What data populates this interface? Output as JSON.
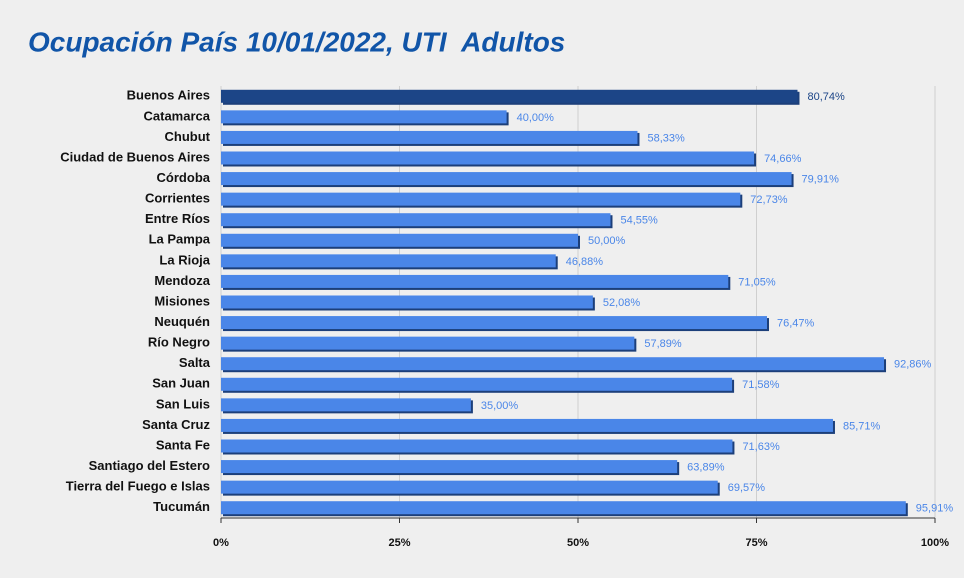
{
  "chart_data": {
    "type": "bar",
    "orientation": "horizontal",
    "title": "Ocupación País 10/01/2022, UTI  Adultos",
    "categories": [
      "Buenos Aires",
      "Catamarca",
      "Chubut",
      "Ciudad de Buenos Aires",
      "Córdoba",
      "Corrientes",
      "Entre Ríos",
      "La Pampa",
      "La Rioja",
      "Mendoza",
      "Misiones",
      "Neuquén",
      "Río Negro",
      "Salta",
      "San Juan",
      "San Luis",
      "Santa Cruz",
      "Santa Fe",
      "Santiago del Estero",
      "Tierra del Fuego e Islas",
      "Tucumán"
    ],
    "values": [
      80.74,
      40.0,
      58.33,
      74.66,
      79.91,
      72.73,
      54.55,
      50.0,
      46.88,
      71.05,
      52.08,
      76.47,
      57.89,
      92.86,
      71.58,
      35.0,
      85.71,
      71.63,
      63.89,
      69.57,
      95.91
    ],
    "value_labels": [
      "80,74%",
      "40,00%",
      "58,33%",
      "74,66%",
      "79,91%",
      "72,73%",
      "54,55%",
      "50,00%",
      "46,88%",
      "71,05%",
      "52,08%",
      "76,47%",
      "57,89%",
      "92,86%",
      "71,58%",
      "35,00%",
      "85,71%",
      "71,63%",
      "63,89%",
      "69,57%",
      "95,91%"
    ],
    "colors": [
      "#1c4587",
      "#4a86e8",
      "#4a86e8",
      "#4a86e8",
      "#4a86e8",
      "#4a86e8",
      "#4a86e8",
      "#4a86e8",
      "#4a86e8",
      "#4a86e8",
      "#4a86e8",
      "#4a86e8",
      "#4a86e8",
      "#4a86e8",
      "#4a86e8",
      "#4a86e8",
      "#4a86e8",
      "#4a86e8",
      "#4a86e8",
      "#4a86e8",
      "#4a86e8"
    ],
    "xlim": [
      0,
      100
    ],
    "xticks": [
      {
        "value": 0,
        "label": "0%"
      },
      {
        "value": 25,
        "label": "25%"
      },
      {
        "value": 50,
        "label": "50%"
      },
      {
        "value": 75,
        "label": "75%"
      },
      {
        "value": 100,
        "label": "100%"
      }
    ],
    "grid": true
  }
}
